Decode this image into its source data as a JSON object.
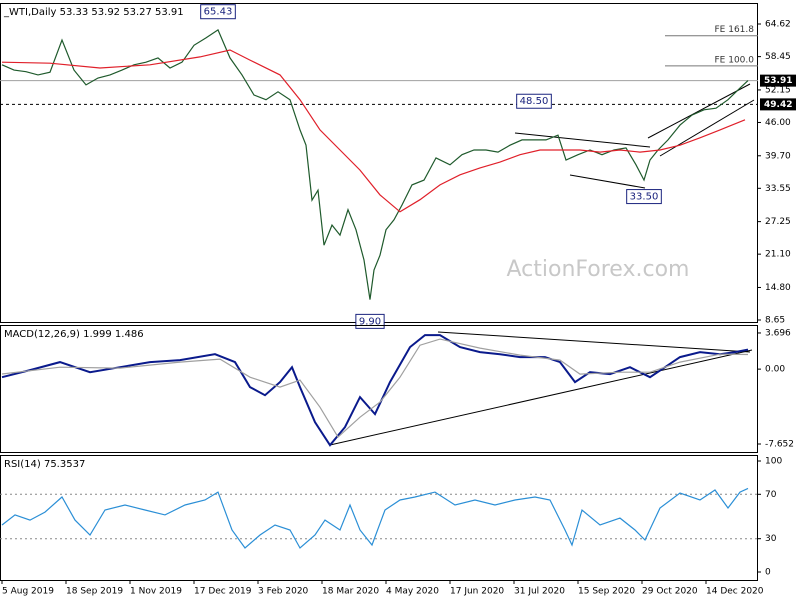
{
  "chart_data": [
    {
      "type": "line",
      "title": "_WTI,Daily 53.33 53.92 53.27 53.91",
      "xlim": [
        -1,
        378
      ],
      "ylim": [
        8.27,
        68.59
      ],
      "yticks": [
        64.62,
        58.45,
        52.15,
        {
          "value": 46,
          "label": "46.00"
        },
        {
          "value": 39.7,
          "label": "39.70"
        },
        33.55,
        27.25,
        {
          "value": 21.1,
          "label": "21.10"
        },
        {
          "value": 14.8,
          "label": "14.80"
        },
        8.65
      ],
      "watermark": "ActionForex.com",
      "series": [
        {
          "name": "Price",
          "color": "#1f5a2c",
          "x": [
            0,
            6,
            12,
            18,
            24,
            30,
            36,
            42,
            48,
            54,
            60,
            66,
            72,
            78,
            84,
            90,
            96,
            102,
            108,
            114,
            120,
            126,
            132,
            138,
            144,
            149,
            152,
            155,
            158,
            161,
            165,
            169,
            173,
            177,
            181,
            184,
            186,
            189,
            192,
            196,
            200,
            205,
            211,
            217,
            224,
            230,
            236,
            242,
            248,
            254,
            260,
            266,
            272,
            278,
            282,
            288,
            294,
            300,
            306,
            312,
            317,
            321,
            324,
            328,
            333,
            339,
            345,
            351,
            357,
            363,
            369,
            373
          ],
          "values": [
            56.9,
            55.9,
            55.6,
            55.0,
            55.5,
            61.6,
            55.9,
            53.1,
            54.4,
            55.0,
            55.9,
            56.9,
            57.4,
            58.2,
            56.3,
            57.4,
            60.6,
            62.0,
            63.5,
            58.2,
            55.0,
            51.2,
            50.3,
            51.8,
            50.3,
            44.6,
            41.7,
            31.3,
            33.2,
            22.8,
            26.6,
            24.7,
            29.5,
            25.7,
            20.0,
            12.5,
            18.1,
            20.9,
            25.7,
            27.6,
            30.4,
            34.2,
            35.1,
            39.3,
            38.0,
            39.9,
            40.8,
            40.8,
            40.4,
            41.7,
            42.7,
            42.7,
            42.7,
            43.6,
            38.9,
            39.9,
            40.8,
            39.9,
            40.8,
            41.2,
            38.0,
            35.1,
            38.9,
            40.8,
            42.7,
            45.5,
            47.4,
            48.4,
            48.7,
            50.3,
            52.5,
            53.91
          ]
        },
        {
          "name": "Moving Average",
          "color": "#e0202a",
          "x": [
            0,
            24,
            49,
            74,
            99,
            114,
            124,
            139,
            149,
            159,
            169,
            179,
            189,
            199,
            209,
            219,
            229,
            239,
            249,
            259,
            269,
            279,
            289,
            299,
            309,
            319,
            329,
            339,
            349,
            359,
            371.5
          ],
          "values": [
            57.4,
            57.2,
            56.3,
            56.9,
            58.4,
            59.7,
            57.8,
            55.0,
            50.3,
            44.6,
            40.8,
            37.0,
            32.3,
            29.1,
            31.4,
            34.2,
            36.1,
            37.4,
            38.5,
            39.9,
            40.8,
            40.8,
            40.8,
            40.4,
            40.8,
            40.4,
            40.8,
            41.7,
            43.1,
            44.6,
            46.5
          ]
        }
      ],
      "hlines": [
        {
          "value": 53.91,
          "label": "53.91",
          "color": "#a0a0a0",
          "style": "solid"
        },
        {
          "value": 49.42,
          "label": "49.42",
          "color": "#000000",
          "style": "dashed"
        }
      ],
      "fe_lines": [
        {
          "value": 62.4,
          "label": "FE 161.8"
        },
        {
          "value": 56.7,
          "label": "FE 100.0"
        }
      ],
      "levels": [
        {
          "x": 108,
          "value": 65.43,
          "label": "65.43"
        },
        {
          "x": 266,
          "value": 48.5,
          "label": "48.50"
        },
        {
          "x": 321,
          "value": 33.5,
          "label": "33.50"
        },
        {
          "x": 184,
          "value": 9.9,
          "label": "9.90"
        }
      ]
    },
    {
      "type": "line",
      "title": "MACD(12,26,9) 1.999 1.486",
      "xlim": [
        -1,
        378
      ],
      "ylim": [
        -8.47,
        4.51
      ],
      "yticks": [
        3.696,
        {
          "value": 0,
          "label": "0.00"
        },
        -7.652
      ],
      "series": [
        {
          "name": "MACD",
          "color": "#0a1a8c",
          "x": [
            0,
            14,
            29,
            44,
            59,
            74,
            89,
            106.5,
            116.5,
            124,
            131.5,
            139,
            145,
            149,
            156.5,
            164,
            171.5,
            179,
            186.5,
            194,
            204,
            211.5,
            219,
            229,
            239,
            249,
            259,
            271.5,
            279,
            286.5,
            294,
            304,
            314,
            324,
            331.5,
            339,
            349,
            359,
            366.5,
            373
          ],
          "values": [
            -0.82,
            -0.1,
            0.72,
            -0.31,
            0.2,
            0.72,
            0.92,
            1.53,
            0.72,
            -1.84,
            -2.66,
            -1.33,
            0.2,
            -1.84,
            -5.42,
            -7.77,
            -5.93,
            -2.86,
            -4.6,
            -1.33,
            2.25,
            3.48,
            3.48,
            2.25,
            1.74,
            1.53,
            1.23,
            1.23,
            0.72,
            -1.33,
            -0.31,
            -0.51,
            0.2,
            -0.82,
            0.2,
            1.23,
            1.74,
            1.53,
            1.74,
            2.0
          ]
        },
        {
          "name": "Signal",
          "color": "#a0a0a0",
          "x": [
            0,
            29,
            59,
            89,
            109,
            124,
            139,
            149,
            159,
            168,
            179,
            189,
            199,
            209,
            219,
            239,
            259,
            279,
            289,
            309,
            324,
            339,
            359,
            373
          ],
          "values": [
            -0.5,
            0.2,
            0.1,
            0.72,
            1.02,
            -0.82,
            -1.84,
            -1.12,
            -3.89,
            -6.95,
            -4.91,
            -3.37,
            -0.82,
            2.45,
            3.07,
            2.15,
            1.43,
            0.92,
            -0.51,
            -0.31,
            -0.31,
            0.72,
            1.53,
            1.49
          ]
        }
      ]
    },
    {
      "type": "line",
      "title": "RSI(14) 75.3537",
      "xlim": [
        -1,
        378
      ],
      "ylim": [
        -7.2,
        105.4
      ],
      "yticks": [
        100,
        70,
        30,
        0
      ],
      "levels": [
        70,
        30
      ],
      "xticks": [
        {
          "value": 0,
          "label": "5 Aug 2019"
        },
        {
          "value": 32,
          "label": "18 Sep 2019"
        },
        {
          "value": 64,
          "label": "1 Nov 2019"
        },
        {
          "value": 96,
          "label": "17 Dec 2019"
        },
        {
          "value": 128,
          "label": "3 Feb 2020"
        },
        {
          "value": 160,
          "label": "18 Mar 2020"
        },
        {
          "value": 192,
          "label": "4 May 2020"
        },
        {
          "value": 224,
          "label": "17 Jun 2020"
        },
        {
          "value": 256,
          "label": "31 Jul 2020"
        },
        {
          "value": 288,
          "label": "15 Sep 2020"
        },
        {
          "value": 320,
          "label": "29 Oct 2020"
        },
        {
          "value": 352,
          "label": "14 Dec 2020"
        }
      ],
      "series": [
        {
          "name": "RSI",
          "color": "#2b8fd6",
          "x": [
            0,
            6.5,
            14,
            21.5,
            30,
            36.5,
            44,
            51.5,
            61.5,
            71.5,
            81.5,
            91.5,
            101.5,
            108,
            115,
            121.5,
            129,
            136.5,
            144,
            149,
            156.5,
            161.5,
            169,
            174,
            179,
            185,
            191.5,
            199,
            206.5,
            216.5,
            226.5,
            236.5,
            246.5,
            256.5,
            266.5,
            274,
            281.5,
            285,
            290,
            299,
            309,
            316.5,
            321.5,
            329,
            339,
            349,
            356.5,
            363,
            369,
            373
          ],
          "values": [
            42.3,
            51.4,
            46.8,
            54,
            67.6,
            46.8,
            33.3,
            55.9,
            60.4,
            55.9,
            51.4,
            60.4,
            64.9,
            72,
            37.8,
            21.6,
            33.3,
            42.3,
            37.8,
            21.6,
            33.3,
            46.8,
            37.8,
            60.4,
            37.8,
            24.3,
            55.9,
            64.9,
            67.6,
            72,
            60.4,
            64.9,
            60.4,
            64.9,
            67.6,
            64.9,
            37.8,
            24.3,
            55.9,
            42.3,
            48.6,
            37.8,
            28.8,
            57.7,
            71.2,
            64.9,
            73.9,
            57.7,
            72,
            75.35
          ]
        }
      ]
    }
  ]
}
